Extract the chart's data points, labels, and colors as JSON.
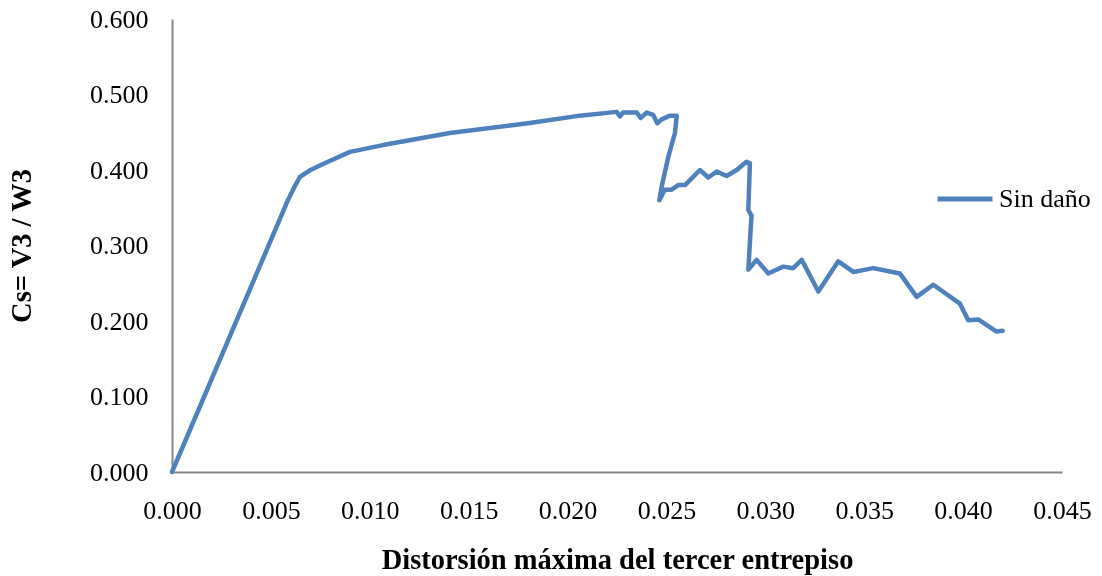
{
  "chart_data": {
    "type": "line",
    "xlabel": "Distorsión máxima del tercer entrepiso",
    "ylabel": "Cs= V3 / W3",
    "x": [
      0,
      0.00586,
      0.0062,
      0.00647,
      0.007,
      0.0078,
      0.009,
      0.01067,
      0.01405,
      0.018,
      0.02063,
      0.02248,
      0.02265,
      0.0228,
      0.0235,
      0.0237,
      0.024,
      0.02433,
      0.02454,
      0.02476,
      0.02518,
      0.02552,
      0.02543,
      0.0251,
      0.02476,
      0.02464,
      0.02492,
      0.02526,
      0.0256,
      0.02594,
      0.02669,
      0.02712,
      0.02754,
      0.02804,
      0.02855,
      0.02905,
      0.02922,
      0.02914,
      0.0293,
      0.02914,
      0.02956,
      0.03015,
      0.0309,
      0.03141,
      0.03184,
      0.03268,
      0.03369,
      0.03445,
      0.03546,
      0.0368,
      0.03765,
      0.03849,
      0.03984,
      0.04026,
      0.04076,
      0.04169,
      0.042
    ],
    "series": [
      {
        "name": "Sin daño",
        "color": "#4f81bd",
        "values": [
          0,
          0.36,
          0.378,
          0.391,
          0.4,
          0.41,
          0.424,
          0.433,
          0.449,
          0.462,
          0.472,
          0.477,
          0.471,
          0.476,
          0.476,
          0.469,
          0.476,
          0.473,
          0.462,
          0.467,
          0.472,
          0.472,
          0.449,
          0.418,
          0.378,
          0.36,
          0.374,
          0.374,
          0.38,
          0.38,
          0.4,
          0.39,
          0.398,
          0.392,
          0.4,
          0.411,
          0.409,
          0.347,
          0.34,
          0.268,
          0.281,
          0.263,
          0.272,
          0.27,
          0.281,
          0.239,
          0.279,
          0.265,
          0.27,
          0.263,
          0.232,
          0.248,
          0.223,
          0.201,
          0.202,
          0.186,
          0.187
        ]
      }
    ],
    "xlim": [
      0,
      0.045
    ],
    "xticks": [
      {
        "value": 0,
        "label": "0.000"
      },
      {
        "value": 0.005,
        "label": "0.005"
      },
      {
        "value": 0.01,
        "label": "0.010"
      },
      {
        "value": 0.015,
        "label": "0.015"
      },
      {
        "value": 0.02,
        "label": "0.020"
      },
      {
        "value": 0.025,
        "label": "0.025"
      },
      {
        "value": 0.03,
        "label": "0.030"
      },
      {
        "value": 0.035,
        "label": "0.035"
      },
      {
        "value": 0.04,
        "label": "0.040"
      },
      {
        "value": 0.045,
        "label": "0.045"
      }
    ],
    "ylim": [
      0,
      0.6
    ],
    "yticks": [
      {
        "value": 0,
        "label": "0.000"
      },
      {
        "value": 0.1,
        "label": "0.100"
      },
      {
        "value": 0.2,
        "label": "0.200"
      },
      {
        "value": 0.3,
        "label": "0.300"
      },
      {
        "value": 0.4,
        "label": "0.400"
      },
      {
        "value": 0.5,
        "label": "0.500"
      },
      {
        "value": 0.6,
        "label": "0.600"
      }
    ],
    "grid": false,
    "legend": "right"
  }
}
